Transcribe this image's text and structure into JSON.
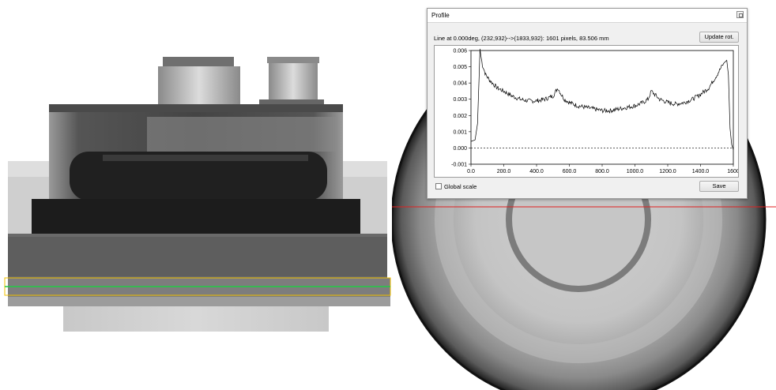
{
  "colors": {
    "profile_line": "#e02020",
    "roi_box": "#f0c000",
    "roi_line": "#22cc44",
    "trace": "#000000"
  },
  "profile_window": {
    "title": "Profile",
    "close_icon": "window-close-icon",
    "info": "Line at 0.000deg, (232,932)-->(1833,932): 1601 pixels, 83.506 mm",
    "update_rot_label": "Update rot.",
    "global_scale_label": "Global scale",
    "global_scale_checked": false,
    "save_label": "Save"
  },
  "chart_data": {
    "type": "line",
    "xlim": [
      0,
      1600
    ],
    "ylim": [
      -0.001,
      0.006
    ],
    "x_ticks": [
      "0.0",
      "200.0",
      "400.0",
      "600.0",
      "800.0",
      "1000.0",
      "1200.0",
      "1400.0",
      "1600"
    ],
    "y_ticks": [
      "0.006",
      "0.005",
      "0.004",
      "0.003",
      "0.002",
      "0.001",
      "0.000",
      "-0.001"
    ],
    "zero_line": true,
    "series": [
      {
        "x": [
          0,
          25,
          40,
          50,
          55,
          60,
          70,
          90,
          120,
          160,
          200,
          250,
          300,
          350,
          400,
          450,
          500,
          530,
          550,
          570,
          600,
          650,
          700,
          750,
          800,
          850,
          900,
          950,
          1000,
          1050,
          1080,
          1100,
          1120,
          1150,
          1200,
          1250,
          1300,
          1350,
          1400,
          1450,
          1500,
          1540,
          1560,
          1570,
          1580,
          1590,
          1600
        ],
        "y": [
          0.0004,
          0.0005,
          0.0015,
          0.0045,
          0.0061,
          0.0057,
          0.0051,
          0.0045,
          0.0041,
          0.0037,
          0.0035,
          0.0032,
          0.003,
          0.0029,
          0.0029,
          0.003,
          0.0032,
          0.0037,
          0.0033,
          0.003,
          0.0028,
          0.0026,
          0.0025,
          0.0024,
          0.0023,
          0.0023,
          0.0024,
          0.0025,
          0.0026,
          0.0028,
          0.003,
          0.0035,
          0.0033,
          0.003,
          0.0028,
          0.0027,
          0.0028,
          0.003,
          0.0033,
          0.0037,
          0.0045,
          0.0052,
          0.0054,
          0.0045,
          0.0012,
          0.0002,
          -0.0001
        ]
      }
    ]
  }
}
